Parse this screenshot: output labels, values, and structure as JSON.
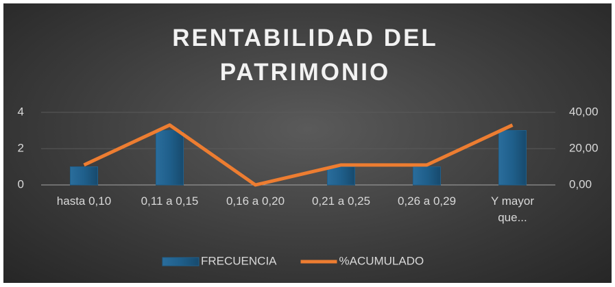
{
  "chart_data": {
    "type": "bar-line",
    "title": "RENTABILIDAD DEL PATRIMONIO",
    "categories": [
      "hasta 0,10",
      "0,11 a 0,15",
      "0,16 a 0,20",
      "0,21 a 0,25",
      "0,26 a 0,29",
      "Y mayor que..."
    ],
    "series": [
      {
        "name": "FRECUENCIA",
        "type": "bar",
        "color": "#1f5f8b",
        "values": [
          1,
          3,
          0,
          1,
          1,
          3
        ]
      },
      {
        "name": "%ACUMULADO",
        "type": "line",
        "color": "#ed7d31",
        "axis": "y2",
        "values": [
          11,
          33,
          0,
          11,
          11,
          33
        ]
      }
    ],
    "ylim": [
      0,
      4
    ],
    "yticks": [
      0,
      2,
      4
    ],
    "y2lim": [
      0,
      40
    ],
    "y2ticks": [
      {
        "value": 0,
        "label": "0,00"
      },
      {
        "value": 20,
        "label": "20,00"
      },
      {
        "value": 40,
        "label": "40,00"
      }
    ],
    "grid": true,
    "legend": "bottom"
  }
}
